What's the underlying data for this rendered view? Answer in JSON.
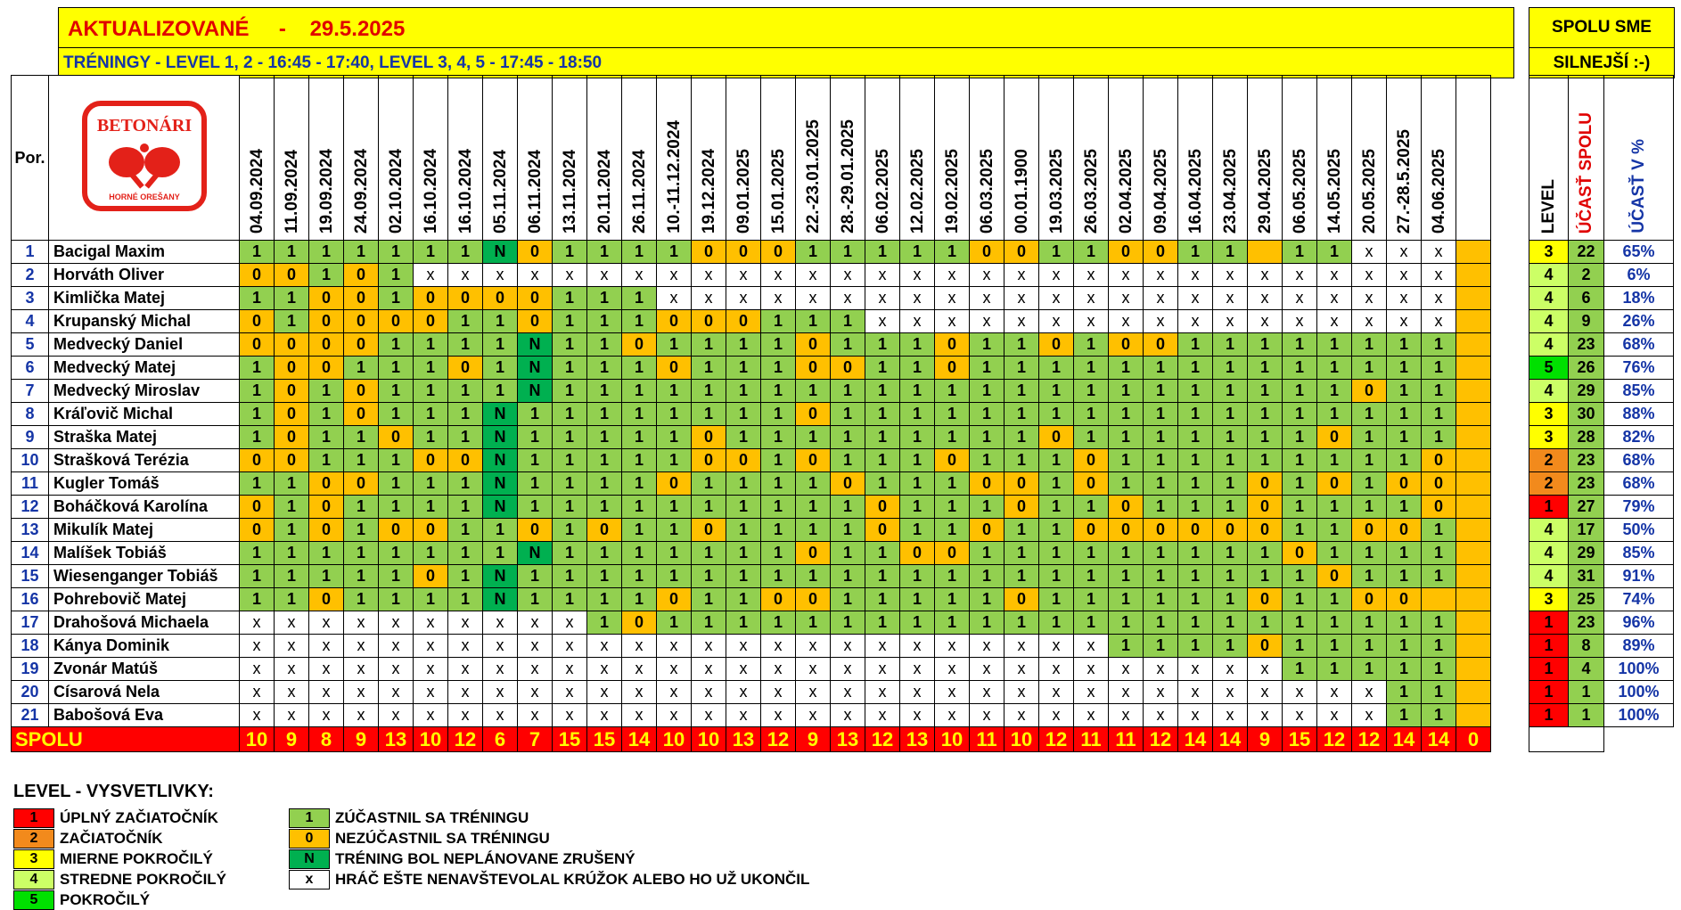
{
  "header": {
    "updated_label": "AKTUALIZOVANÉ",
    "separator": "-",
    "updated_date": "29.5.2025",
    "trainings": "TRÉNINGY - LEVEL 1, 2 - 16:45 - 17:40, LEVEL 3, 4, 5 - 17:45 - 18:50",
    "motto_line1": "SPOLU SME",
    "motto_line2": "SILNEJŠÍ :-)"
  },
  "logo": {
    "text_top": "BETONÁRI",
    "text_bottom": "HORNÉ OREŠANY",
    "accent_color": "#e32119"
  },
  "table": {
    "por_label": "Por.",
    "dates": [
      "04.09.2024",
      "11.09.2024",
      "19.09.2024",
      "24.09.2024",
      "02.10.2024",
      "16.10.2024",
      "16.10.2024",
      "05.11.2024",
      "06.11.2024",
      "13.11.2024",
      "20.11.2024",
      "26.11.2024",
      "10.-11.12.2024",
      "19.12.2024",
      "09.01.2025",
      "15.01.2025",
      "22.-23.01.2025",
      "28.-29.01.2025",
      "06.02.2025",
      "12.02.2025",
      "19.02.2025",
      "06.03.2025",
      "00.01.1900",
      "19.03.2025",
      "26.03.2025",
      "02.04.2025",
      "09.04.2025",
      "16.04.2025",
      "23.04.2025",
      "29.04.2025",
      "06.05.2025",
      "14.05.2025",
      "20.05.2025",
      "27.-28.5.2025",
      "04.06.2025",
      ""
    ],
    "level_label": "LEVEL",
    "ucast_label": "ÚČASŤ SPOLU",
    "pct_label": "ÚČASŤ V %",
    "players": [
      {
        "num": "1",
        "name": "Bacigal Maxim",
        "level": "3",
        "ucast": "22",
        "pct": "65%",
        "att": [
          "1",
          "1",
          "1",
          "1",
          "1",
          "1",
          "1",
          "N",
          "0",
          "1",
          "1",
          "1",
          "1",
          "0",
          "0",
          "0",
          "1",
          "1",
          "1",
          "1",
          "1",
          "0",
          "0",
          "1",
          "1",
          "0",
          "0",
          "1",
          "1",
          "",
          "1",
          "1",
          "x",
          "x",
          "x",
          "#"
        ]
      },
      {
        "num": "2",
        "name": "Horváth Oliver",
        "level": "4",
        "ucast": "2",
        "pct": "6%",
        "att": [
          "0",
          "0",
          "1",
          "0",
          "1",
          "x",
          "x",
          "x",
          "x",
          "x",
          "x",
          "x",
          "x",
          "x",
          "x",
          "x",
          "x",
          "x",
          "x",
          "x",
          "x",
          "x",
          "x",
          "x",
          "x",
          "x",
          "x",
          "x",
          "x",
          "x",
          "x",
          "x",
          "x",
          "x",
          "x",
          "#"
        ]
      },
      {
        "num": "3",
        "name": "Kimlička Matej",
        "level": "4",
        "ucast": "6",
        "pct": "18%",
        "att": [
          "1",
          "1",
          "0",
          "0",
          "1",
          "0",
          "0",
          "0",
          "0",
          "1",
          "1",
          "1",
          "x",
          "x",
          "x",
          "x",
          "x",
          "x",
          "x",
          "x",
          "x",
          "x",
          "x",
          "x",
          "x",
          "x",
          "x",
          "x",
          "x",
          "x",
          "x",
          "x",
          "x",
          "x",
          "x",
          "#"
        ]
      },
      {
        "num": "4",
        "name": "Krupanský Michal",
        "level": "4",
        "ucast": "9",
        "pct": "26%",
        "att": [
          "0",
          "1",
          "0",
          "0",
          "0",
          "0",
          "1",
          "1",
          "0",
          "1",
          "1",
          "1",
          "0",
          "0",
          "0",
          "1",
          "1",
          "1",
          "x",
          "x",
          "x",
          "x",
          "x",
          "x",
          "x",
          "x",
          "x",
          "x",
          "x",
          "x",
          "x",
          "x",
          "x",
          "x",
          "x",
          "#"
        ]
      },
      {
        "num": "5",
        "name": "Medvecký Daniel",
        "level": "4",
        "ucast": "23",
        "pct": "68%",
        "att": [
          "0",
          "0",
          "0",
          "0",
          "1",
          "1",
          "1",
          "1",
          "N",
          "1",
          "1",
          "0",
          "1",
          "1",
          "1",
          "1",
          "0",
          "1",
          "1",
          "1",
          "0",
          "1",
          "1",
          "0",
          "1",
          "0",
          "0",
          "1",
          "1",
          "1",
          "1",
          "1",
          "1",
          "1",
          "1",
          "#"
        ]
      },
      {
        "num": "6",
        "name": "Medvecký Matej",
        "level": "5",
        "ucast": "26",
        "pct": "76%",
        "att": [
          "1",
          "0",
          "0",
          "1",
          "1",
          "1",
          "0",
          "1",
          "N",
          "1",
          "1",
          "1",
          "0",
          "1",
          "1",
          "1",
          "0",
          "0",
          "1",
          "1",
          "0",
          "1",
          "1",
          "1",
          "1",
          "1",
          "1",
          "1",
          "1",
          "1",
          "1",
          "1",
          "1",
          "1",
          "1",
          "#"
        ]
      },
      {
        "num": "7",
        "name": "Medvecký Miroslav",
        "level": "4",
        "ucast": "29",
        "pct": "85%",
        "att": [
          "1",
          "0",
          "1",
          "0",
          "1",
          "1",
          "1",
          "1",
          "N",
          "1",
          "1",
          "1",
          "1",
          "1",
          "1",
          "1",
          "1",
          "1",
          "1",
          "1",
          "1",
          "1",
          "1",
          "1",
          "1",
          "1",
          "1",
          "1",
          "1",
          "1",
          "1",
          "1",
          "0",
          "1",
          "1",
          "#"
        ]
      },
      {
        "num": "8",
        "name": "Kráľovič Michal",
        "level": "3",
        "ucast": "30",
        "pct": "88%",
        "att": [
          "1",
          "0",
          "1",
          "0",
          "1",
          "1",
          "1",
          "N",
          "1",
          "1",
          "1",
          "1",
          "1",
          "1",
          "1",
          "1",
          "0",
          "1",
          "1",
          "1",
          "1",
          "1",
          "1",
          "1",
          "1",
          "1",
          "1",
          "1",
          "1",
          "1",
          "1",
          "1",
          "1",
          "1",
          "1",
          "#"
        ]
      },
      {
        "num": "9",
        "name": "Straška Matej",
        "level": "3",
        "ucast": "28",
        "pct": "82%",
        "att": [
          "1",
          "0",
          "1",
          "1",
          "0",
          "1",
          "1",
          "N",
          "1",
          "1",
          "1",
          "1",
          "1",
          "0",
          "1",
          "1",
          "1",
          "1",
          "1",
          "1",
          "1",
          "1",
          "1",
          "0",
          "1",
          "1",
          "1",
          "1",
          "1",
          "1",
          "1",
          "0",
          "1",
          "1",
          "1",
          "#"
        ]
      },
      {
        "num": "10",
        "name": "Strašková Terézia",
        "level": "2",
        "ucast": "23",
        "pct": "68%",
        "att": [
          "0",
          "0",
          "1",
          "1",
          "1",
          "0",
          "0",
          "N",
          "1",
          "1",
          "1",
          "1",
          "1",
          "0",
          "0",
          "1",
          "0",
          "1",
          "1",
          "1",
          "0",
          "1",
          "1",
          "1",
          "0",
          "1",
          "1",
          "1",
          "1",
          "1",
          "1",
          "1",
          "1",
          "1",
          "0",
          "#"
        ]
      },
      {
        "num": "11",
        "name": "Kugler Tomáš",
        "level": "2",
        "ucast": "23",
        "pct": "68%",
        "att": [
          "1",
          "1",
          "0",
          "0",
          "1",
          "1",
          "1",
          "N",
          "1",
          "1",
          "1",
          "1",
          "0",
          "1",
          "1",
          "1",
          "1",
          "0",
          "1",
          "1",
          "1",
          "0",
          "0",
          "1",
          "0",
          "1",
          "1",
          "1",
          "1",
          "0",
          "1",
          "0",
          "1",
          "0",
          "0",
          "#"
        ]
      },
      {
        "num": "12",
        "name": "Boháčková Karolína",
        "level": "1",
        "ucast": "27",
        "pct": "79%",
        "att": [
          "0",
          "1",
          "0",
          "1",
          "1",
          "1",
          "1",
          "N",
          "1",
          "1",
          "1",
          "1",
          "1",
          "1",
          "1",
          "1",
          "1",
          "1",
          "0",
          "1",
          "1",
          "1",
          "0",
          "1",
          "1",
          "0",
          "1",
          "1",
          "1",
          "0",
          "1",
          "1",
          "1",
          "1",
          "0",
          "#"
        ]
      },
      {
        "num": "13",
        "name": "Mikulík Matej",
        "level": "4",
        "ucast": "17",
        "pct": "50%",
        "att": [
          "0",
          "1",
          "0",
          "1",
          "0",
          "0",
          "1",
          "1",
          "0",
          "1",
          "0",
          "1",
          "1",
          "0",
          "1",
          "1",
          "1",
          "1",
          "0",
          "1",
          "1",
          "0",
          "1",
          "1",
          "0",
          "0",
          "0",
          "0",
          "0",
          "0",
          "1",
          "1",
          "0",
          "0",
          "1",
          "#"
        ]
      },
      {
        "num": "14",
        "name": "Malíšek Tobiáš",
        "level": "4",
        "ucast": "29",
        "pct": "85%",
        "att": [
          "1",
          "1",
          "1",
          "1",
          "1",
          "1",
          "1",
          "1",
          "N",
          "1",
          "1",
          "1",
          "1",
          "1",
          "1",
          "1",
          "0",
          "1",
          "1",
          "0",
          "0",
          "1",
          "1",
          "1",
          "1",
          "1",
          "1",
          "1",
          "1",
          "1",
          "0",
          "1",
          "1",
          "1",
          "1",
          "#"
        ]
      },
      {
        "num": "15",
        "name": "Wiesenganger Tobiáš",
        "level": "4",
        "ucast": "31",
        "pct": "91%",
        "att": [
          "1",
          "1",
          "1",
          "1",
          "1",
          "0",
          "1",
          "N",
          "1",
          "1",
          "1",
          "1",
          "1",
          "1",
          "1",
          "1",
          "1",
          "1",
          "1",
          "1",
          "1",
          "1",
          "1",
          "1",
          "1",
          "1",
          "1",
          "1",
          "1",
          "1",
          "1",
          "0",
          "1",
          "1",
          "1",
          "#"
        ]
      },
      {
        "num": "16",
        "name": "Pohrebovič Matej",
        "level": "3",
        "ucast": "25",
        "pct": "74%",
        "att": [
          "1",
          "1",
          "0",
          "1",
          "1",
          "1",
          "1",
          "N",
          "1",
          "1",
          "1",
          "1",
          "0",
          "1",
          "1",
          "0",
          "0",
          "1",
          "1",
          "1",
          "1",
          "1",
          "0",
          "1",
          "1",
          "1",
          "1",
          "1",
          "1",
          "0",
          "1",
          "1",
          "0",
          "0",
          "",
          "#"
        ]
      },
      {
        "num": "17",
        "name": "Drahošová Michaela",
        "level": "1",
        "ucast": "23",
        "pct": "96%",
        "att": [
          "x",
          "x",
          "x",
          "x",
          "x",
          "x",
          "x",
          "x",
          "x",
          "x",
          "1",
          "0",
          "1",
          "1",
          "1",
          "1",
          "1",
          "1",
          "1",
          "1",
          "1",
          "1",
          "1",
          "1",
          "1",
          "1",
          "1",
          "1",
          "1",
          "1",
          "1",
          "1",
          "1",
          "1",
          "1",
          "#"
        ]
      },
      {
        "num": "18",
        "name": "Kánya Dominik",
        "level": "1",
        "ucast": "8",
        "pct": "89%",
        "att": [
          "x",
          "x",
          "x",
          "x",
          "x",
          "x",
          "x",
          "x",
          "x",
          "x",
          "x",
          "x",
          "x",
          "x",
          "x",
          "x",
          "x",
          "x",
          "x",
          "x",
          "x",
          "x",
          "x",
          "x",
          "x",
          "1",
          "1",
          "1",
          "1",
          "0",
          "1",
          "1",
          "1",
          "1",
          "1",
          "#"
        ]
      },
      {
        "num": "19",
        "name": "Zvonár Matúš",
        "level": "1",
        "ucast": "4",
        "pct": "100%",
        "att": [
          "x",
          "x",
          "x",
          "x",
          "x",
          "x",
          "x",
          "x",
          "x",
          "x",
          "x",
          "x",
          "x",
          "x",
          "x",
          "x",
          "x",
          "x",
          "x",
          "x",
          "x",
          "x",
          "x",
          "x",
          "x",
          "x",
          "x",
          "x",
          "x",
          "x",
          "1",
          "1",
          "1",
          "1",
          "1",
          "#"
        ]
      },
      {
        "num": "20",
        "name": "Císarová Nela",
        "level": "1",
        "ucast": "1",
        "pct": "100%",
        "att": [
          "x",
          "x",
          "x",
          "x",
          "x",
          "x",
          "x",
          "x",
          "x",
          "x",
          "x",
          "x",
          "x",
          "x",
          "x",
          "x",
          "x",
          "x",
          "x",
          "x",
          "x",
          "x",
          "x",
          "x",
          "x",
          "x",
          "x",
          "x",
          "x",
          "x",
          "x",
          "x",
          "x",
          "1",
          "1",
          "#"
        ]
      },
      {
        "num": "21",
        "name": "Babošová Eva",
        "level": "1",
        "ucast": "1",
        "pct": "100%",
        "att": [
          "x",
          "x",
          "x",
          "x",
          "x",
          "x",
          "x",
          "x",
          "x",
          "x",
          "x",
          "x",
          "x",
          "x",
          "x",
          "x",
          "x",
          "x",
          "x",
          "x",
          "x",
          "x",
          "x",
          "x",
          "x",
          "x",
          "x",
          "x",
          "x",
          "x",
          "x",
          "x",
          "x",
          "1",
          "1",
          "#"
        ]
      }
    ],
    "total_label": "SPOLU",
    "totals": [
      "10",
      "9",
      "8",
      "9",
      "13",
      "10",
      "12",
      "6",
      "7",
      "15",
      "15",
      "14",
      "10",
      "10",
      "13",
      "12",
      "9",
      "13",
      "12",
      "13",
      "10",
      "11",
      "10",
      "12",
      "11",
      "11",
      "12",
      "14",
      "14",
      "9",
      "15",
      "12",
      "12",
      "14",
      "14",
      "0"
    ]
  },
  "legend": {
    "title": "LEVEL - VYSVETLIVKY:",
    "levels": [
      {
        "code": "1",
        "label": "ÚPLNÝ ZAČIATOČNÍK",
        "color": "#ff0000"
      },
      {
        "code": "2",
        "label": "ZAČIATOČNÍK",
        "color": "#f28a1c"
      },
      {
        "code": "3",
        "label": "MIERNE POKROČILÝ",
        "color": "#ffff00"
      },
      {
        "code": "4",
        "label": "STREDNE POKROČILÝ",
        "color": "#ccff66"
      },
      {
        "code": "5",
        "label": "POKROČILÝ",
        "color": "#00e000"
      }
    ],
    "marks": [
      {
        "code": "1",
        "label": "ZÚČASTNIL SA TRÉNINGU",
        "color": "#92d050"
      },
      {
        "code": "0",
        "label": "NEZÚČASTNIL SA TRÉNINGU",
        "color": "#ffc000"
      },
      {
        "code": "N",
        "label": "TRÉNING BOL NEPLÁNOVANE ZRUŠENÝ",
        "color": "#00b050"
      },
      {
        "code": "x",
        "label": "HRÁČ EŠTE NENAVŠTEVOLAL KRÚŽOK ALEBO HO UŽ UKONČIL",
        "color": "#ffffff"
      }
    ]
  }
}
